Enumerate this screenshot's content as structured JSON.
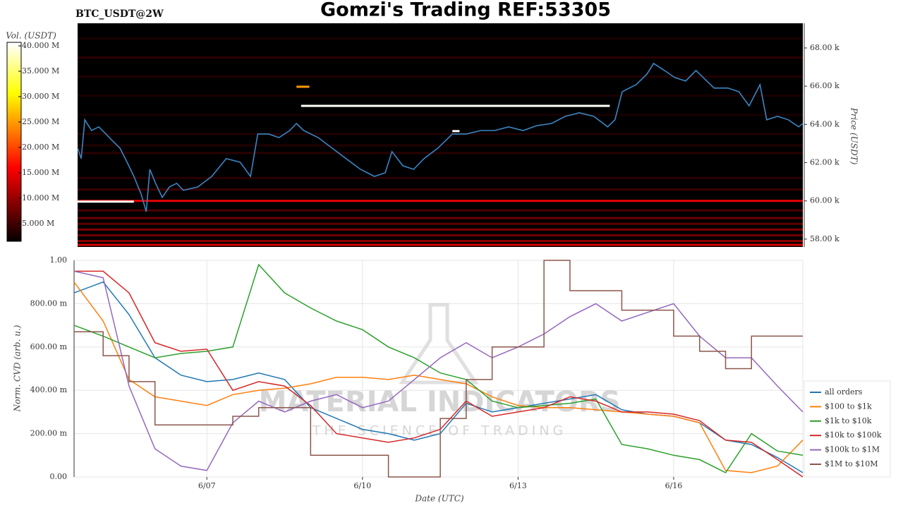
{
  "header": {
    "title": "Gomzi's Trading REF:53305"
  },
  "watermark": {
    "name": "MATERIAL INDICATORS",
    "tagline": "THE SCIENCE OF TRADING"
  },
  "chart_data": [
    {
      "type": "heatmap",
      "title": "BTC_USDT@2W",
      "ylabel": "Price (USDT)",
      "xlim": [
        4.44,
        18.49
      ],
      "ylim": [
        57.59,
        69.29
      ],
      "yticks": [
        {
          "value": 58,
          "label": "58.00 k"
        },
        {
          "value": 60,
          "label": "60.00 k"
        },
        {
          "value": 62,
          "label": "62.00 k"
        },
        {
          "value": 64,
          "label": "64.00 k"
        },
        {
          "value": 66,
          "label": "66.00 k"
        },
        {
          "value": 68,
          "label": "68.00 k"
        }
      ],
      "color": "#3a85c3",
      "x": [
        4.44,
        4.51,
        4.58,
        4.71,
        4.85,
        4.99,
        5.12,
        5.26,
        5.4,
        5.53,
        5.67,
        5.77,
        5.84,
        5.95,
        6.08,
        6.22,
        6.36,
        6.49,
        6.77,
        7.04,
        7.32,
        7.59,
        7.79,
        7.93,
        8.14,
        8.34,
        8.55,
        8.68,
        8.82,
        9.1,
        9.37,
        9.64,
        9.92,
        10.19,
        10.4,
        10.53,
        10.74,
        10.95,
        11.15,
        11.42,
        11.7,
        11.97,
        12.25,
        12.52,
        12.79,
        13.07,
        13.34,
        13.62,
        13.89,
        14.16,
        14.44,
        14.71,
        14.85,
        14.99,
        15.26,
        15.47,
        15.6,
        15.81,
        16.01,
        16.22,
        16.42,
        16.63,
        16.77,
        17.04,
        17.25,
        17.45,
        17.66,
        17.79,
        18.0,
        18.21,
        18.41,
        18.49
      ],
      "values": [
        62.76,
        62.21,
        64.24,
        63.68,
        63.87,
        63.5,
        63.13,
        62.76,
        62.02,
        61.28,
        60.36,
        59.44,
        61.65,
        60.92,
        60.18,
        60.73,
        60.92,
        60.55,
        60.73,
        61.28,
        62.21,
        62.02,
        61.28,
        63.5,
        63.5,
        63.31,
        63.68,
        64.05,
        63.68,
        63.31,
        62.76,
        62.21,
        61.65,
        61.28,
        61.47,
        62.58,
        61.84,
        61.65,
        62.21,
        62.76,
        63.5,
        63.5,
        63.68,
        63.68,
        63.87,
        63.68,
        63.94,
        64.05,
        64.42,
        64.61,
        64.42,
        63.87,
        64.24,
        65.71,
        66.08,
        66.63,
        67.19,
        66.82,
        66.45,
        66.27,
        66.82,
        66.27,
        65.9,
        65.9,
        65.71,
        64.97,
        66.08,
        64.24,
        64.42,
        64.24,
        63.87,
        64.05
      ],
      "levels": {
        "prices": [
          57.7,
          57.9,
          58.2,
          58.5,
          58.8,
          59.1,
          59.5,
          60.0,
          60.6,
          61.2,
          62.5,
          62.9,
          63.5,
          64.5,
          65.5,
          66.5,
          67.5,
          68.5
        ],
        "volumes": [
          14,
          10,
          8,
          9,
          7,
          8,
          6,
          15,
          5,
          4,
          4,
          3.5,
          3.5,
          3,
          3,
          3.5,
          4,
          3
        ]
      },
      "orders": [
        {
          "price": 59.96,
          "start": 4.44,
          "end": 5.53,
          "volume": 40.5
        },
        {
          "price": 64.97,
          "start": 8.77,
          "end": 14.75,
          "volume": 40.5
        },
        {
          "price": 63.65,
          "start": 11.7,
          "end": 11.84,
          "volume": 40.5
        },
        {
          "price": 65.97,
          "start": 8.68,
          "end": 8.93,
          "volume": 25
        }
      ],
      "colorbar": {
        "label": "Vol. (USDT)",
        "lim": [
          1.5,
          40.7
        ],
        "ticks": [
          {
            "value": 5,
            "label": "5.000 M"
          },
          {
            "value": 10,
            "label": "10.000 M"
          },
          {
            "value": 15,
            "label": "15.000 M"
          },
          {
            "value": 20,
            "label": "20.000 M"
          },
          {
            "value": 25,
            "label": "25.000 M"
          },
          {
            "value": 30,
            "label": "30.000 M"
          },
          {
            "value": 35,
            "label": "35.000 M"
          },
          {
            "value": 40,
            "label": "40.000 M"
          }
        ]
      }
    },
    {
      "type": "line",
      "xlabel": "Date (UTC)",
      "ylabel": "Norm. CVD (arb. u.)",
      "grid": true,
      "legend": "right",
      "xlim": [
        4.44,
        18.49
      ],
      "ylim": [
        0,
        1
      ],
      "xticks": [
        {
          "value": 7,
          "label": "6/07"
        },
        {
          "value": 10,
          "label": "6/10"
        },
        {
          "value": 13,
          "label": "6/13"
        },
        {
          "value": 16,
          "label": "6/16"
        }
      ],
      "yticks": [
        {
          "value": 0,
          "label": "0.00"
        },
        {
          "value": 0.2,
          "label": "200.00 m"
        },
        {
          "value": 0.4,
          "label": "400.00 m"
        },
        {
          "value": 0.6,
          "label": "600.00 m"
        },
        {
          "value": 0.8,
          "label": "800.00 m"
        },
        {
          "value": 1,
          "label": "1.00"
        }
      ],
      "x": [
        4.44,
        5,
        5.5,
        6,
        6.5,
        7,
        7.5,
        8,
        8.5,
        9,
        9.5,
        10,
        10.5,
        11,
        11.5,
        12,
        12.5,
        13,
        13.5,
        14,
        14.5,
        15,
        15.5,
        16,
        16.5,
        17,
        17.5,
        18,
        18.49
      ],
      "series": [
        {
          "name": "all orders",
          "color": "#1f77b4",
          "values": [
            0.85,
            0.9,
            0.75,
            0.55,
            0.47,
            0.44,
            0.45,
            0.48,
            0.45,
            0.32,
            0.27,
            0.22,
            0.2,
            0.17,
            0.2,
            0.34,
            0.3,
            0.32,
            0.34,
            0.36,
            0.38,
            0.31,
            0.29,
            0.28,
            0.25,
            0.17,
            0.15,
            0.09,
            0.02
          ]
        },
        {
          "name": "$100 to $1k",
          "color": "#ff7f0e",
          "values": [
            0.9,
            0.72,
            0.45,
            0.37,
            0.35,
            0.33,
            0.38,
            0.4,
            0.41,
            0.43,
            0.46,
            0.46,
            0.45,
            0.47,
            0.45,
            0.43,
            0.37,
            0.33,
            0.32,
            0.32,
            0.31,
            0.3,
            0.29,
            0.28,
            0.25,
            0.03,
            0.02,
            0.05,
            0.17
          ]
        },
        {
          "name": "$1k to $10k",
          "color": "#2ca02c",
          "values": [
            0.7,
            0.65,
            0.6,
            0.55,
            0.57,
            0.58,
            0.6,
            0.98,
            0.85,
            0.78,
            0.72,
            0.68,
            0.6,
            0.55,
            0.48,
            0.45,
            0.35,
            0.32,
            0.33,
            0.34,
            0.36,
            0.15,
            0.13,
            0.1,
            0.08,
            0.02,
            0.2,
            0.12,
            0.1
          ]
        },
        {
          "name": "$10k to $100k",
          "color": "#d62728",
          "values": [
            0.95,
            0.95,
            0.85,
            0.62,
            0.58,
            0.59,
            0.4,
            0.44,
            0.42,
            0.33,
            0.2,
            0.18,
            0.16,
            0.18,
            0.22,
            0.35,
            0.28,
            0.3,
            0.32,
            0.37,
            0.35,
            0.3,
            0.3,
            0.29,
            0.26,
            0.17,
            0.16,
            0.08,
            0.0
          ]
        },
        {
          "name": "$100k to $1M",
          "color": "#9467bd",
          "values": [
            0.95,
            0.92,
            0.42,
            0.13,
            0.05,
            0.03,
            0.25,
            0.35,
            0.3,
            0.35,
            0.38,
            0.32,
            0.35,
            0.45,
            0.55,
            0.62,
            0.55,
            0.6,
            0.66,
            0.74,
            0.8,
            0.72,
            0.76,
            0.8,
            0.65,
            0.55,
            0.55,
            0.42,
            0.3
          ]
        },
        {
          "name": "$1M to $10M",
          "color": "#8c564b",
          "step": true,
          "values": [
            0.67,
            0.56,
            0.44,
            0.24,
            0.24,
            0.24,
            0.28,
            0.32,
            0.32,
            0.1,
            0.1,
            0.1,
            0.0,
            0.0,
            0.27,
            0.45,
            0.6,
            0.6,
            1.0,
            0.86,
            0.86,
            0.77,
            0.77,
            0.65,
            0.58,
            0.5,
            0.65,
            0.65,
            0.65
          ]
        }
      ]
    }
  ]
}
